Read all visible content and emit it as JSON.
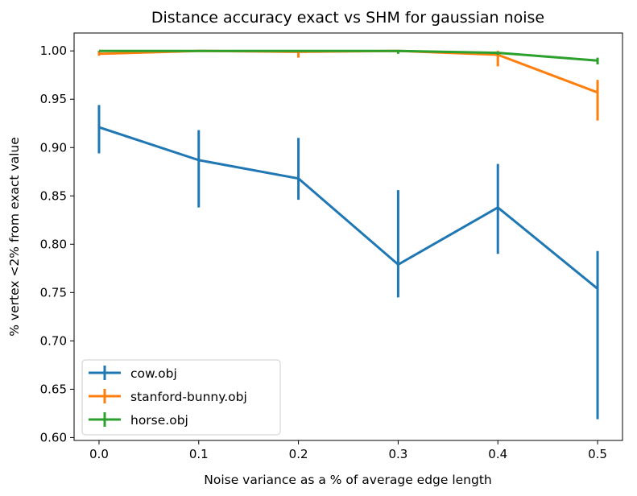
{
  "chart_data": {
    "type": "line",
    "title": "Distance accuracy exact vs SHM for gaussian noise",
    "xlabel": "Noise variance as a % of average edge length",
    "ylabel": "% vertex <2% from exact value",
    "x": [
      0.0,
      0.1,
      0.2,
      0.3,
      0.4,
      0.5
    ],
    "xticks": [
      "0.0",
      "0.1",
      "0.2",
      "0.3",
      "0.4",
      "0.5"
    ],
    "yticks": [
      "0.60",
      "0.65",
      "0.70",
      "0.75",
      "0.80",
      "0.85",
      "0.90",
      "0.95",
      "1.00"
    ],
    "xlim": [
      -0.025,
      0.525
    ],
    "ylim": [
      0.597,
      1.0185
    ],
    "grid": false,
    "legend_position": "lower-left",
    "series": [
      {
        "name": "cow.obj",
        "color": "#1f77b4",
        "values": [
          0.921,
          0.887,
          0.868,
          0.779,
          0.838,
          0.754
        ],
        "err_low": [
          0.894,
          0.838,
          0.846,
          0.745,
          0.79,
          0.619
        ],
        "err_high": [
          0.944,
          0.918,
          0.91,
          0.856,
          0.883,
          0.793
        ]
      },
      {
        "name": "stanford-bunny.obj",
        "color": "#ff7f0e",
        "values": [
          0.997,
          1.0,
          0.999,
          1.0,
          0.996,
          0.957
        ],
        "err_low": [
          0.995,
          0.999,
          0.993,
          0.999,
          0.984,
          0.928
        ],
        "err_high": [
          0.999,
          1.0,
          1.0,
          1.0,
          1.0,
          0.97
        ]
      },
      {
        "name": "horse.obj",
        "color": "#2ca02c",
        "values": [
          1.0,
          1.0,
          1.0,
          1.0,
          0.998,
          0.99
        ],
        "err_low": [
          0.999,
          0.999,
          0.999,
          0.997,
          0.996,
          0.986
        ],
        "err_high": [
          1.0,
          1.0,
          1.0,
          1.0,
          0.999,
          0.993
        ]
      }
    ]
  }
}
